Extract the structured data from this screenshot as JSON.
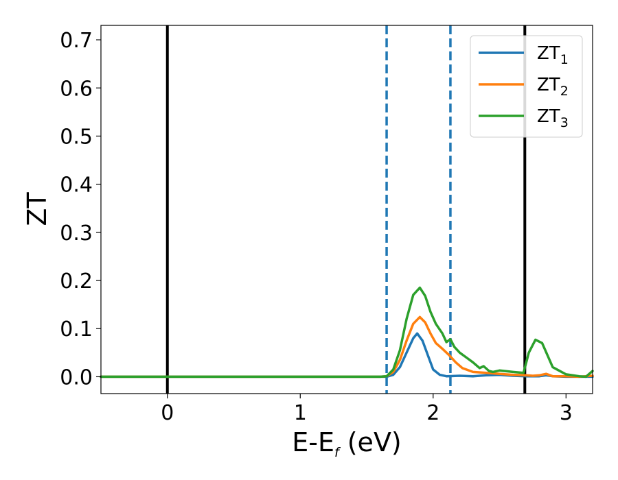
{
  "chart_data": {
    "type": "line",
    "xlabel": {
      "main": "E-E",
      "sub": "f",
      "unit": " (eV)"
    },
    "ylabel": "ZT",
    "xlim": [
      -0.5,
      3.2
    ],
    "ylim": [
      -0.035,
      0.73
    ],
    "xticks": [
      0,
      1,
      2,
      3
    ],
    "xtick_labels": [
      "0",
      "1",
      "2",
      "3"
    ],
    "yticks": [
      0.0,
      0.1,
      0.2,
      0.3,
      0.4,
      0.5,
      0.6,
      0.7
    ],
    "ytick_labels": [
      "0.0",
      "0.1",
      "0.2",
      "0.3",
      "0.4",
      "0.5",
      "0.6",
      "0.7"
    ],
    "grid": false,
    "legend_position": "top-right",
    "vertical_lines": [
      {
        "x": 0.0,
        "style": "solid",
        "color": "#000000"
      },
      {
        "x": 2.69,
        "style": "solid",
        "color": "#000000"
      },
      {
        "x": 1.65,
        "style": "dashed",
        "color": "#1f77b4"
      },
      {
        "x": 2.13,
        "style": "dashed",
        "color": "#1f77b4"
      }
    ],
    "series": [
      {
        "name": "ZT",
        "sub": "1",
        "color": "#1f77b4",
        "x": [
          -0.5,
          1.6,
          1.65,
          1.7,
          1.75,
          1.8,
          1.85,
          1.88,
          1.92,
          1.96,
          2.0,
          2.05,
          2.1,
          2.2,
          2.3,
          2.4,
          2.5,
          2.6,
          2.7,
          2.8,
          2.85,
          2.9,
          3.0,
          3.1,
          3.2
        ],
        "y": [
          0.0,
          0.0,
          0.0,
          0.004,
          0.02,
          0.05,
          0.08,
          0.09,
          0.075,
          0.045,
          0.015,
          0.004,
          0.001,
          0.002,
          0.001,
          0.003,
          0.004,
          0.002,
          0.001,
          0.001,
          0.003,
          0.001,
          0.0,
          0.0,
          0.0
        ]
      },
      {
        "name": "ZT",
        "sub": "2",
        "color": "#ff7f0e",
        "x": [
          -0.5,
          1.6,
          1.65,
          1.7,
          1.75,
          1.8,
          1.85,
          1.9,
          1.94,
          1.98,
          2.02,
          2.07,
          2.12,
          2.17,
          2.22,
          2.3,
          2.4,
          2.5,
          2.6,
          2.7,
          2.75,
          2.8,
          2.85,
          2.9,
          3.0,
          3.1,
          3.2
        ],
        "y": [
          0.0,
          0.0,
          0.001,
          0.01,
          0.035,
          0.075,
          0.11,
          0.124,
          0.113,
          0.09,
          0.07,
          0.058,
          0.045,
          0.03,
          0.018,
          0.01,
          0.008,
          0.006,
          0.004,
          0.003,
          0.002,
          0.003,
          0.006,
          0.001,
          0.001,
          0.0,
          0.002
        ]
      },
      {
        "name": "ZT",
        "sub": "3",
        "color": "#2ca02c",
        "x": [
          -0.5,
          1.6,
          1.65,
          1.7,
          1.75,
          1.8,
          1.85,
          1.9,
          1.94,
          1.98,
          2.02,
          2.07,
          2.1,
          2.13,
          2.16,
          2.2,
          2.25,
          2.3,
          2.35,
          2.38,
          2.42,
          2.45,
          2.5,
          2.6,
          2.68,
          2.72,
          2.77,
          2.82,
          2.86,
          2.9,
          3.0,
          3.1,
          3.15,
          3.2
        ],
        "y": [
          0.0,
          0.0,
          0.001,
          0.015,
          0.055,
          0.12,
          0.17,
          0.185,
          0.168,
          0.135,
          0.11,
          0.09,
          0.072,
          0.078,
          0.062,
          0.05,
          0.04,
          0.03,
          0.018,
          0.022,
          0.012,
          0.01,
          0.013,
          0.01,
          0.008,
          0.05,
          0.077,
          0.07,
          0.045,
          0.02,
          0.005,
          0.001,
          0.0,
          0.012
        ]
      }
    ]
  }
}
